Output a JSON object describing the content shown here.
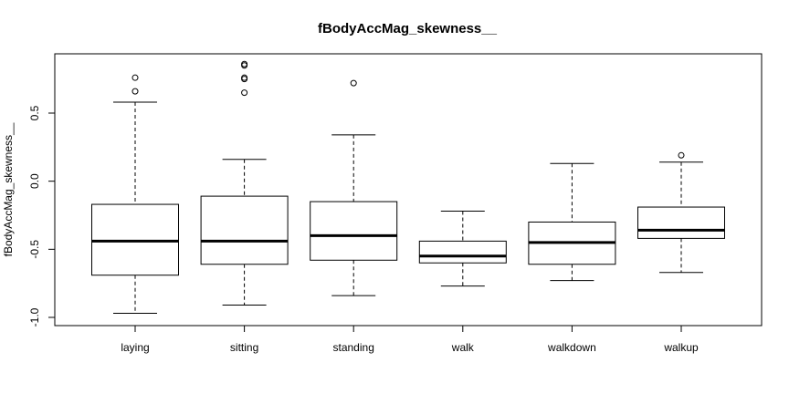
{
  "chart_data": {
    "type": "boxplot",
    "title": "fBodyAccMag_skewness__",
    "xlabel": "",
    "ylabel": "fBodyAccMag_skewness__",
    "ylim": [
      -1.0,
      0.85
    ],
    "yticks": [
      -1.0,
      -0.5,
      0.0,
      0.5
    ],
    "ytick_labels": [
      "-1.0",
      "-0.5",
      "0.0",
      "0.5"
    ],
    "grid": false,
    "categories": [
      "laying",
      "sitting",
      "standing",
      "walk",
      "walkdown",
      "walkup"
    ],
    "boxes": [
      {
        "category": "laying",
        "whisker_low": -0.97,
        "q1": -0.69,
        "median": -0.44,
        "q3": -0.17,
        "whisker_high": 0.58,
        "outliers": [
          0.66,
          0.76
        ]
      },
      {
        "category": "sitting",
        "whisker_low": -0.91,
        "q1": -0.61,
        "median": -0.44,
        "q3": -0.11,
        "whisker_high": 0.16,
        "outliers": [
          0.65,
          0.75,
          0.76,
          0.85,
          0.86
        ]
      },
      {
        "category": "standing",
        "whisker_low": -0.84,
        "q1": -0.58,
        "median": -0.4,
        "q3": -0.15,
        "whisker_high": 0.34,
        "outliers": [
          0.72
        ]
      },
      {
        "category": "walk",
        "whisker_low": -0.77,
        "q1": -0.6,
        "median": -0.55,
        "q3": -0.44,
        "whisker_high": -0.22,
        "outliers": []
      },
      {
        "category": "walkdown",
        "whisker_low": -0.73,
        "q1": -0.61,
        "median": -0.45,
        "q3": -0.3,
        "whisker_high": 0.13,
        "outliers": []
      },
      {
        "category": "walkup",
        "whisker_low": -0.67,
        "q1": -0.42,
        "median": -0.36,
        "q3": -0.19,
        "whisker_high": 0.14,
        "outliers": [
          0.19
        ]
      }
    ]
  }
}
